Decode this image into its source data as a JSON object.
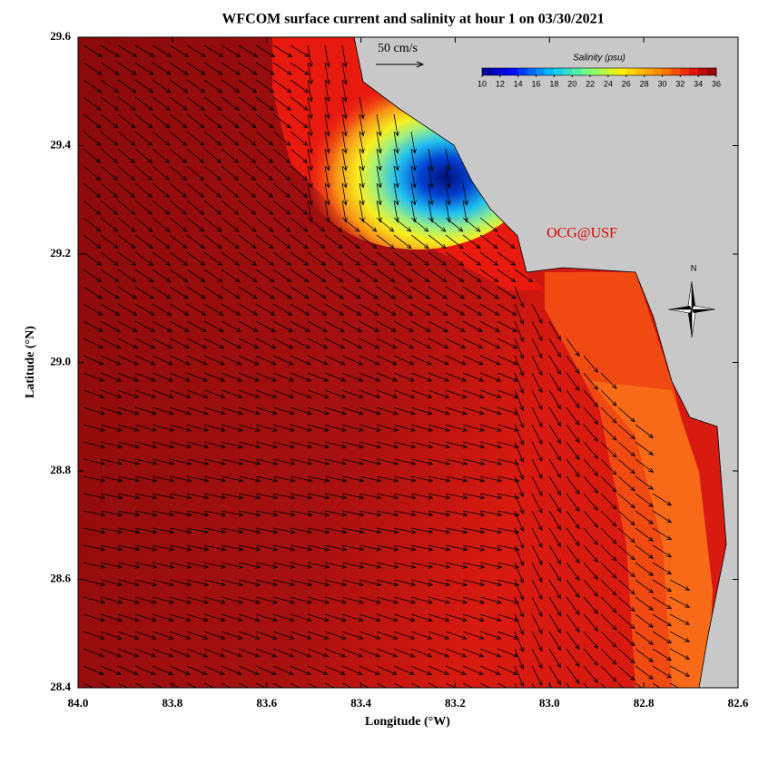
{
  "title": "WFCOM surface current and salinity at hour 1 on 03/30/2021",
  "x_axis": {
    "label": "Longitude (°W)",
    "lim": [
      84,
      82.6
    ],
    "ticks": [
      {
        "value": 84,
        "label": "84.0"
      },
      83.8,
      83.6,
      83.4,
      83.2,
      {
        "value": 83,
        "label": "83.0"
      },
      82.8,
      82.6
    ]
  },
  "y_axis": {
    "label": "Latitude (°N)",
    "lim": [
      28.4,
      29.6
    ],
    "ticks": [
      28.4,
      28.6,
      28.8,
      {
        "value": 29,
        "label": "29.0"
      },
      29.2,
      29.4,
      29.6
    ]
  },
  "colorbar": {
    "title": "Salinity (psu)",
    "lim": [
      10,
      36
    ],
    "ticks": [
      10,
      12,
      14,
      16,
      18,
      20,
      22,
      24,
      26,
      28,
      30,
      32,
      34,
      36
    ]
  },
  "scale_label": "50 cm/s",
  "credit": "OCG@USF",
  "north": "N"
}
